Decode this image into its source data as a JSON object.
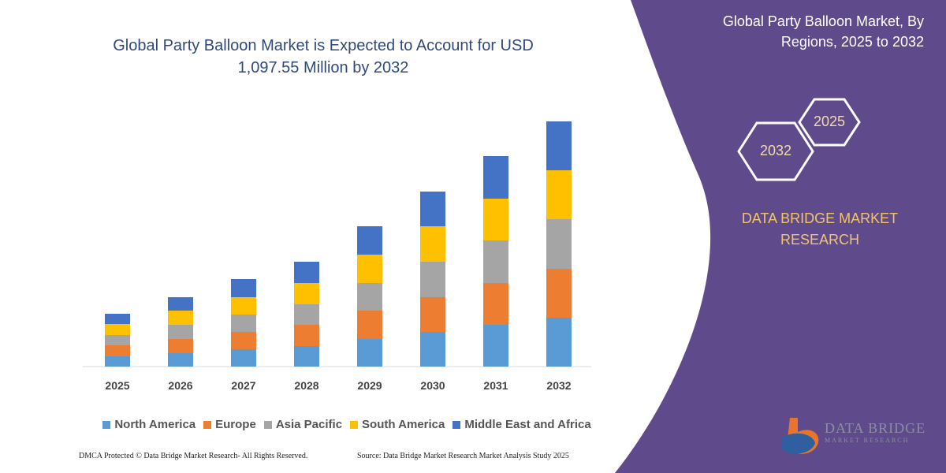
{
  "chart_data": {
    "type": "stacked_bar",
    "title": "Global Party Balloon Market is Expected to Account for USD 1,097.55 Million by 2032",
    "categories": [
      "2025",
      "2026",
      "2027",
      "2028",
      "2029",
      "2030",
      "2031",
      "2032"
    ],
    "series": [
      {
        "name": "North America",
        "color": "#5b9bd5",
        "values": [
          13,
          17,
          22,
          26,
          35,
          44,
          53,
          62
        ]
      },
      {
        "name": "Europe",
        "color": "#ed7d31",
        "values": [
          14,
          18,
          22,
          27,
          36,
          44,
          53,
          62
        ]
      },
      {
        "name": "Asia Pacific",
        "color": "#a5a5a5",
        "values": [
          13,
          18,
          22,
          26,
          35,
          45,
          54,
          63
        ]
      },
      {
        "name": "South America",
        "color": "#ffc000",
        "values": [
          14,
          18,
          22,
          27,
          36,
          45,
          53,
          62
        ]
      },
      {
        "name": "Middle East and Africa",
        "color": "#4472c4",
        "values": [
          13,
          17,
          23,
          27,
          36,
          44,
          54,
          62
        ]
      }
    ]
  },
  "panel": {
    "title": "Global Party Balloon Market, By Regions, 2025 to 2032",
    "hex_labels": [
      "2025",
      "2032"
    ],
    "brand": "DATA BRIDGE MARKET RESEARCH",
    "logo": [
      "DATA BRIDGE",
      "MARKET RESEARCH"
    ]
  },
  "footer": {
    "notice": "DMCA Protected © Data Bridge Market Research- All Rights Reserved.",
    "source": "Source: Data Bridge Market Research Market Analysis Study 2025"
  }
}
